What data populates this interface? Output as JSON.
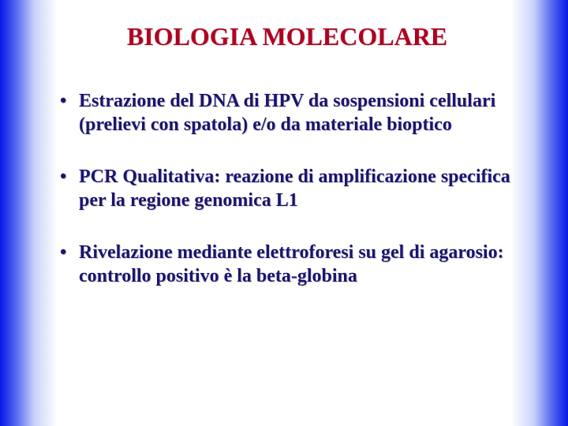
{
  "slide": {
    "title": "BIOLOGIA MOLECOLARE",
    "title_color": "#b00020",
    "title_fontsize": 32,
    "bullet_color": "#1a1470",
    "bullet_fontsize": 24,
    "background_gradient": {
      "direction": "horizontal",
      "stops": [
        "#0818e8",
        "#5a6ef0",
        "#c8d0fa",
        "#ffffff",
        "#ffffff",
        "#c8d0fa",
        "#5a6ef0",
        "#0818e8"
      ]
    },
    "bullets": [
      "Estrazione del DNA di HPV da sospensioni cellulari (prelievi con spatola) e/o da materiale bioptico",
      "PCR Qualitativa: reazione di amplificazione specifica per la regione genomica L1",
      "Rivelazione mediante elettroforesi su gel di agarosio: controllo positivo è la beta-globina"
    ]
  }
}
